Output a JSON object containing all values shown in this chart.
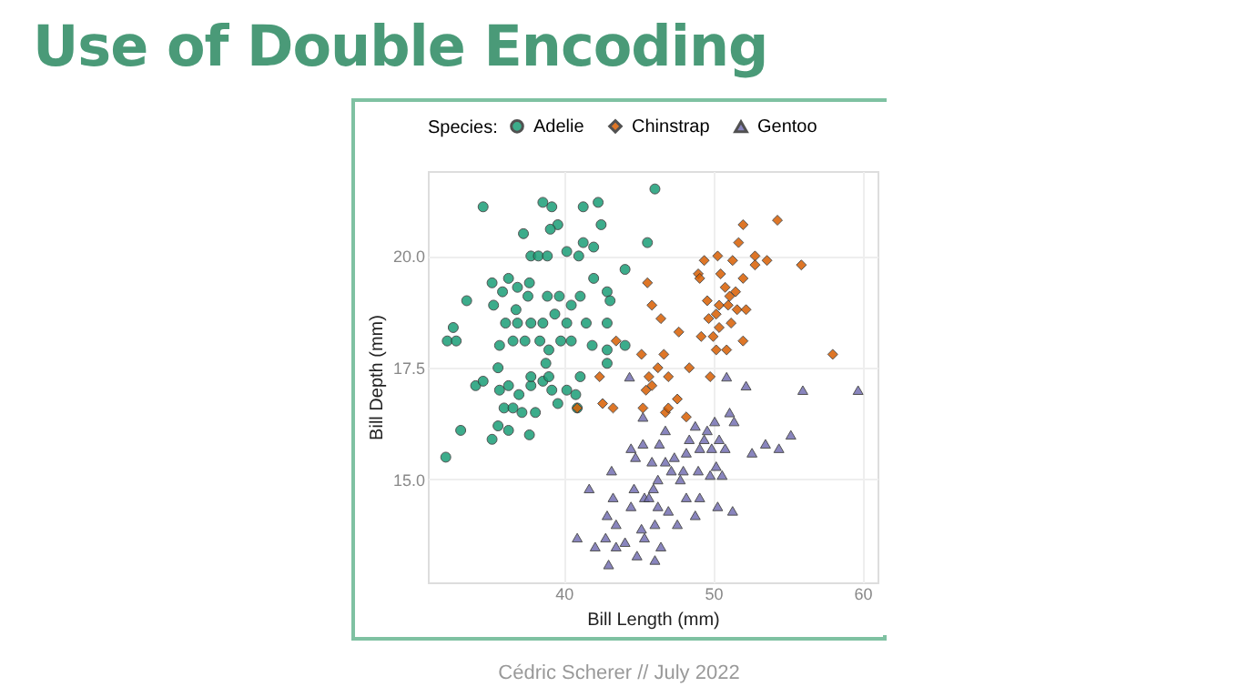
{
  "chart_data": {
    "type": "scatter",
    "title": "Use of Double Encoding",
    "xlabel": "Bill Length (mm)",
    "ylabel": "Bill Depth (mm)",
    "legend_title": "Species:",
    "legend": "top",
    "grid": true,
    "annotations": [
      "Cédric Scherer // July 2022"
    ],
    "xlim": [
      30.9,
      61
    ],
    "ylim": [
      12.7,
      21.9
    ],
    "xticks": [
      40,
      50,
      60
    ],
    "yticks": [
      {
        "value": 15,
        "label": "15.0"
      },
      {
        "value": 17.5,
        "label": "17.5"
      },
      {
        "value": 20,
        "label": "20.0"
      }
    ],
    "series": [
      {
        "name": "Adelie",
        "color": "#1b9e77",
        "marker": "circle",
        "x": [
          34.6,
          38.6,
          39.2,
          41.3,
          42.3,
          46.1,
          39.6,
          39.1,
          37.3,
          42.5,
          41.3,
          42.0,
          45.6,
          40.2,
          37.8,
          38.3,
          38.9,
          41.0,
          44.1,
          33.5,
          35.2,
          36.3,
          35.9,
          36.9,
          37.7,
          35.3,
          36.8,
          37.6,
          38.9,
          39.7,
          40.5,
          41.1,
          42.0,
          42.9,
          43.1,
          32.6,
          32.2,
          32.8,
          36.1,
          36.9,
          37.8,
          38.6,
          39.4,
          40.2,
          41.5,
          42.9,
          35.7,
          36.6,
          37.4,
          38.4,
          39.0,
          39.8,
          40.5,
          41.9,
          42.9,
          44.1,
          38.8,
          35.6,
          42.9,
          32.1,
          33.1,
          34.1,
          34.6,
          35.6,
          35.2,
          36.3,
          36.0,
          36.6,
          37.2,
          37.7,
          38.1,
          35.7,
          36.3,
          37.0,
          37.8,
          38.6,
          39.2,
          39.6,
          40.2,
          40.8,
          40.9,
          37.8,
          39.0,
          41.1
        ],
        "values": [
          21.1,
          21.2,
          21.1,
          21.1,
          21.2,
          21.5,
          20.7,
          20.6,
          20.5,
          20.7,
          20.3,
          20.2,
          20.3,
          20.1,
          20.0,
          20.0,
          20.0,
          20.0,
          19.7,
          19.0,
          19.4,
          19.5,
          19.2,
          19.3,
          19.4,
          18.9,
          18.8,
          19.1,
          19.1,
          19.1,
          18.9,
          19.1,
          19.5,
          19.2,
          19.0,
          18.4,
          18.1,
          18.1,
          18.5,
          18.5,
          18.5,
          18.5,
          18.7,
          18.5,
          18.5,
          18.5,
          18.0,
          18.1,
          18.1,
          18.1,
          17.9,
          18.1,
          18.1,
          18.0,
          17.9,
          18.0,
          17.6,
          17.5,
          17.6,
          15.5,
          16.1,
          17.1,
          17.2,
          16.2,
          15.9,
          16.1,
          16.6,
          16.6,
          16.5,
          16.0,
          16.5,
          17.0,
          17.1,
          16.9,
          17.1,
          17.2,
          17.0,
          16.7,
          17.0,
          16.9,
          16.6,
          17.3,
          17.3,
          17.3
        ]
      },
      {
        "name": "Chinstrap",
        "color": "#d95f02",
        "marker": "diamond",
        "x": [
          45.6,
          45.9,
          46.5,
          47.7,
          43.5,
          45.2,
          46.7,
          46.3,
          42.4,
          45.7,
          47.0,
          48.4,
          49.8,
          49.0,
          49.1,
          49.4,
          50.3,
          51.3,
          52.0,
          51.7,
          52.8,
          53.6,
          54.3,
          55.9,
          52.8,
          50.5,
          50.8,
          51.1,
          51.5,
          52.0,
          49.6,
          50.4,
          51.0,
          51.6,
          52.2,
          50.2,
          49.7,
          50.4,
          51.2,
          49.2,
          50.0,
          52.0,
          50.2,
          50.9,
          58.0,
          45.5,
          45.9,
          47.6,
          40.9,
          42.6,
          43.3,
          45.3,
          46.8,
          47.0,
          48.2
        ],
        "values": [
          19.4,
          18.9,
          18.6,
          18.3,
          18.1,
          17.8,
          17.8,
          17.5,
          17.3,
          17.3,
          17.3,
          17.5,
          17.3,
          19.6,
          19.5,
          19.9,
          20.0,
          19.9,
          20.7,
          20.3,
          20.0,
          19.9,
          20.8,
          19.8,
          19.8,
          19.6,
          19.3,
          19.1,
          19.2,
          19.5,
          19.0,
          18.9,
          18.9,
          18.8,
          18.8,
          18.7,
          18.6,
          18.4,
          18.5,
          18.2,
          18.2,
          18.1,
          17.9,
          17.9,
          17.8,
          17.0,
          17.1,
          16.8,
          16.6,
          16.7,
          16.6,
          16.6,
          16.5,
          16.6,
          16.4
        ]
      },
      {
        "name": "Gentoo",
        "color": "#7570b3",
        "marker": "triangle",
        "x": [
          44.4,
          50.9,
          52.2,
          56.0,
          59.7,
          45.3,
          46.8,
          48.8,
          49.6,
          50.1,
          51.1,
          51.4,
          48.4,
          49.4,
          50.4,
          50.8,
          49.9,
          49.1,
          48.2,
          52.6,
          53.5,
          54.4,
          55.2,
          44.5,
          45.3,
          46.4,
          47.4,
          44.8,
          45.9,
          46.8,
          43.2,
          47.2,
          48.0,
          49.0,
          49.8,
          50.2,
          50.6,
          46.3,
          47.8,
          46.0,
          45.4,
          44.7,
          41.7,
          43.3,
          44.5,
          45.7,
          46.3,
          47.0,
          48.2,
          49.1,
          48.8,
          50.3,
          51.3,
          42.9,
          43.5,
          45.2,
          46.1,
          47.6,
          40.9,
          42.8,
          44.1,
          45.4,
          42.1,
          43.5,
          46.5,
          44.9,
          46.1,
          43.0
        ],
        "values": [
          17.3,
          17.3,
          17.1,
          17.0,
          17.0,
          16.4,
          16.1,
          16.2,
          16.1,
          16.3,
          16.5,
          16.3,
          15.9,
          15.9,
          15.9,
          15.7,
          15.7,
          15.7,
          15.6,
          15.6,
          15.8,
          15.7,
          16.0,
          15.7,
          15.8,
          15.8,
          15.5,
          15.5,
          15.4,
          15.4,
          15.2,
          15.2,
          15.2,
          15.2,
          15.1,
          15.3,
          15.1,
          15.0,
          15.0,
          14.8,
          14.6,
          14.8,
          14.8,
          14.6,
          14.4,
          14.6,
          14.4,
          14.3,
          14.6,
          14.6,
          14.2,
          14.4,
          14.3,
          14.2,
          14.0,
          13.9,
          14.0,
          14.0,
          13.7,
          13.7,
          13.6,
          13.7,
          13.5,
          13.5,
          13.5,
          13.3,
          13.2,
          13.1
        ]
      }
    ]
  }
}
